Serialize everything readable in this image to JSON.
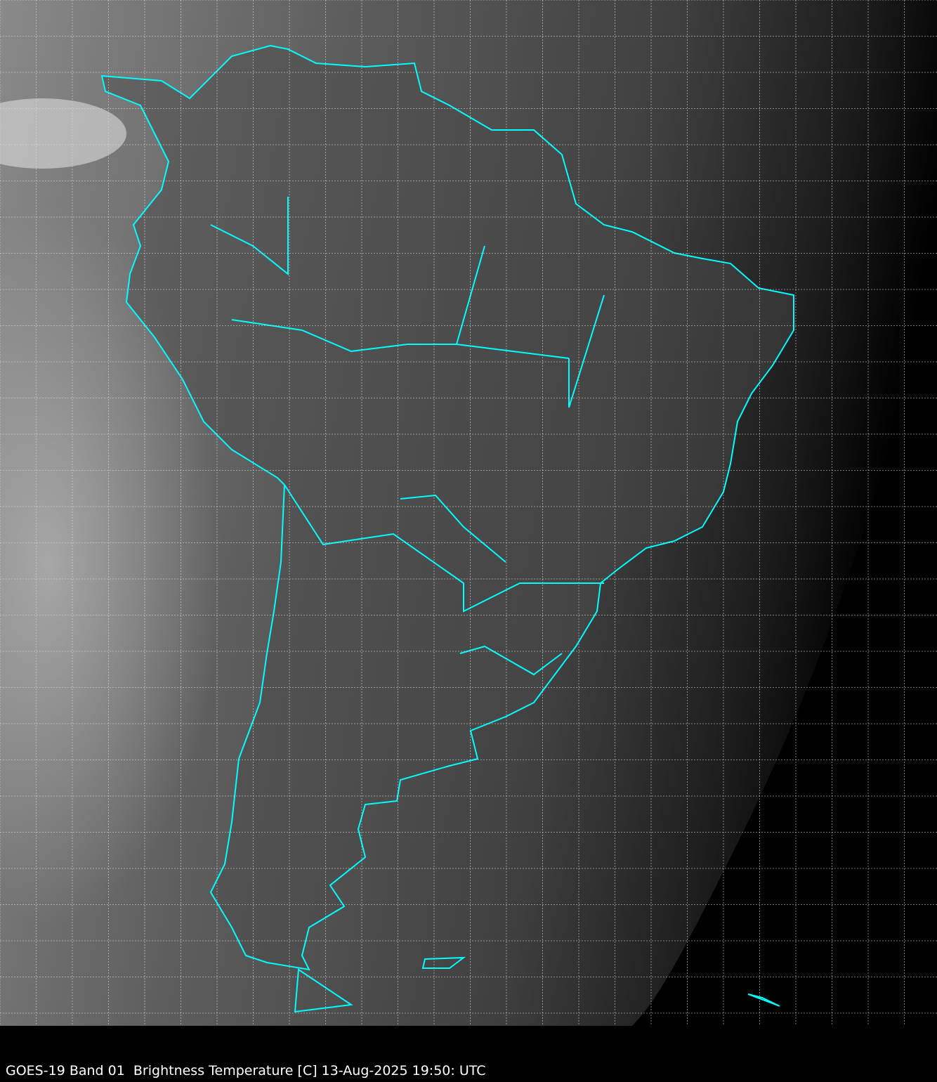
{
  "caption": "GOES-19 Band 01  Brightness Temperature [C] 13-Aug-2025 19:50: UTC",
  "colors": {
    "border": "#00ffff",
    "grid": "#dddddd",
    "background": "#000000"
  }
}
